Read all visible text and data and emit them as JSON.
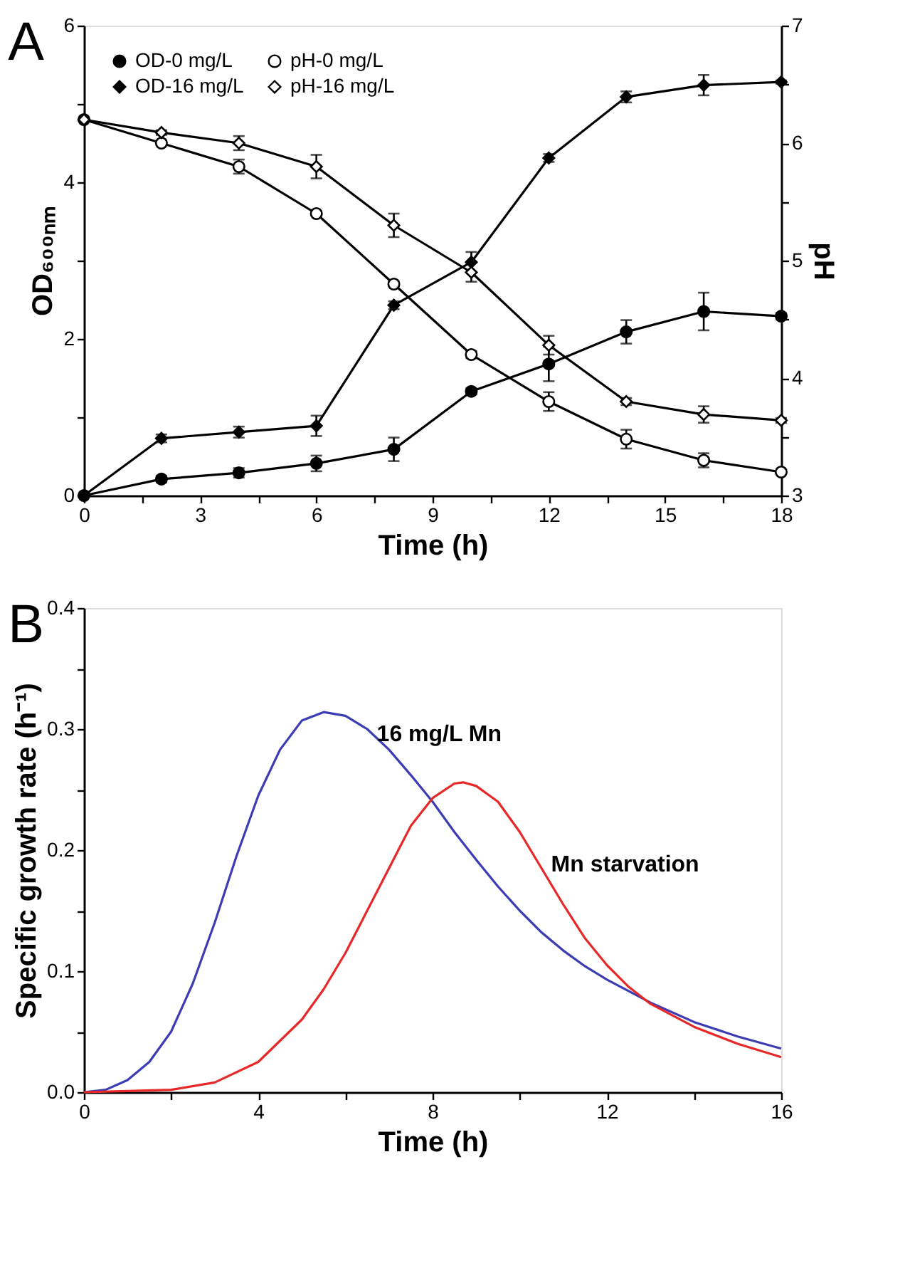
{
  "chart_data": [
    {
      "type": "line",
      "annotations": [
        "A"
      ],
      "xlabel": "Time (h)",
      "ylabel": "OD₆₀₀ₙₘ",
      "y2label": "pH",
      "x": [
        0,
        2,
        4,
        6,
        8,
        10,
        12,
        14,
        16,
        18
      ],
      "xlim": [
        0,
        18
      ],
      "xticks": [
        0,
        {
          "value": 1.5,
          "label": null
        },
        3,
        {
          "value": 4.5,
          "label": null
        },
        6,
        {
          "value": 7.5,
          "label": null
        },
        9,
        {
          "value": 10.5,
          "label": null
        },
        12,
        {
          "value": 13.5,
          "label": null
        },
        15,
        {
          "value": 16.5,
          "label": null
        },
        18
      ],
      "ylim": [
        0,
        6
      ],
      "yticks": [
        0,
        {
          "value": 1,
          "label": null
        },
        2,
        {
          "value": 3,
          "label": null
        },
        4,
        {
          "value": 5,
          "label": null
        },
        6
      ],
      "y2lim": [
        3,
        7
      ],
      "y2ticks": [
        3,
        {
          "value": 3.5,
          "label": null
        },
        4,
        {
          "value": 4.5,
          "label": null
        },
        5,
        {
          "value": 5.5,
          "label": null
        },
        6,
        {
          "value": 6.5,
          "label": null
        },
        7
      ],
      "grid": false,
      "legend": "top left",
      "line_style": "solid",
      "series": [
        {
          "name": "OD-0 mg/L",
          "color": "#000000",
          "marker": "circle",
          "values": [
            0,
            0.21,
            0.29,
            0.41,
            0.59,
            1.33,
            1.68,
            2.09,
            2.35,
            2.29
          ],
          "errors": [
            null,
            0.04,
            0.06,
            0.1,
            0.15,
            0.04,
            0.22,
            0.15,
            0.24,
            0.04
          ]
        },
        {
          "name": "OD-16 mg/L",
          "color": "#000000",
          "marker": "diamond",
          "values": [
            0,
            0.73,
            0.81,
            0.89,
            2.43,
            2.98,
            4.31,
            5.09,
            5.24,
            5.28
          ],
          "errors": [
            null,
            0.05,
            0.07,
            0.13,
            0.05,
            0.13,
            0.05,
            0.07,
            0.13,
            0.02
          ]
        },
        {
          "name": "pH-0 mg/L",
          "color": "#000000",
          "marker": "circle",
          "axis": "y2",
          "values": [
            6.2,
            6.0,
            5.8,
            5.4,
            4.8,
            4.2,
            3.8,
            3.48,
            3.3,
            3.2
          ],
          "errors": [
            null,
            0.02,
            0.06,
            0.02,
            0.02,
            0.03,
            0.08,
            0.08,
            0.06,
            0.02
          ]
        },
        {
          "name": "pH-16 mg/L",
          "color": "#000000",
          "marker": "diamond",
          "axis": "y2",
          "values": [
            6.2,
            6.09,
            6.0,
            5.8,
            5.3,
            4.9,
            4.28,
            3.8,
            3.69,
            3.64
          ],
          "errors": [
            null,
            0.02,
            0.06,
            0.1,
            0.1,
            0.08,
            0.08,
            0.03,
            0.07,
            0.02
          ]
        }
      ]
    },
    {
      "type": "line",
      "annotations": [
        "B"
      ],
      "xlabel": "Time (h)",
      "ylabel": "Specific growth rate (h⁻¹)",
      "xlim": [
        0,
        16
      ],
      "xticks": [
        0,
        {
          "value": 2,
          "label": null
        },
        4,
        {
          "value": 6,
          "label": null
        },
        8,
        {
          "value": 10,
          "label": null
        },
        12,
        {
          "value": 14,
          "label": null
        },
        16
      ],
      "ylim": [
        0,
        0.4
      ],
      "yticks": [
        {
          "value": 0,
          "label": "0.0"
        },
        {
          "value": 0.05,
          "label": null
        },
        0.1,
        {
          "value": 0.15,
          "label": null
        },
        0.2,
        {
          "value": 0.25,
          "label": null
        },
        0.3,
        {
          "value": 0.35,
          "label": null
        },
        0.4
      ],
      "grid": false,
      "legend": false,
      "line_style": "solid",
      "marker": "none",
      "series": [
        {
          "name": "16 mg/L Mn",
          "color": "#3c3cb4",
          "x": [
            0,
            0.5,
            1,
            1.5,
            2,
            2.5,
            3,
            3.5,
            4,
            4.5,
            5,
            5.5,
            6,
            6.5,
            7,
            7.5,
            8,
            8.5,
            9,
            9.5,
            10,
            10.5,
            11,
            11.5,
            12,
            13,
            14,
            15,
            16
          ],
          "values": [
            0,
            0.002,
            0.01,
            0.025,
            0.05,
            0.09,
            0.14,
            0.195,
            0.245,
            0.283,
            0.307,
            0.314,
            0.311,
            0.3,
            0.283,
            0.262,
            0.24,
            0.215,
            0.192,
            0.17,
            0.15,
            0.132,
            0.117,
            0.104,
            0.093,
            0.074,
            0.058,
            0.046,
            0.036
          ]
        },
        {
          "name": "Mn starvation",
          "color": "#e82828",
          "x": [
            0,
            1,
            2,
            3,
            4,
            5,
            5.5,
            6,
            6.5,
            7,
            7.5,
            8,
            8.5,
            8.7,
            9,
            9.5,
            10,
            10.5,
            11,
            11.5,
            12,
            12.5,
            13,
            14,
            15,
            16
          ],
          "values": [
            0,
            0.001,
            0.002,
            0.008,
            0.025,
            0.06,
            0.085,
            0.115,
            0.15,
            0.185,
            0.22,
            0.243,
            0.255,
            0.256,
            0.253,
            0.24,
            0.215,
            0.185,
            0.155,
            0.127,
            0.105,
            0.087,
            0.073,
            0.054,
            0.04,
            0.029
          ]
        }
      ]
    }
  ]
}
